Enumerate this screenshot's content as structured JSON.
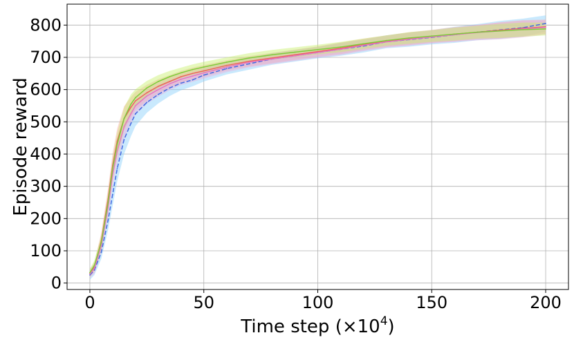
{
  "chart_data": {
    "type": "line",
    "title": "",
    "xlabel_prefix": "Time step (×10",
    "xlabel_exp": "4",
    "xlabel_suffix": ")",
    "ylabel": "Episode reward",
    "xlim": [
      -10,
      210
    ],
    "ylim": [
      -20,
      865
    ],
    "xticks": [
      0,
      50,
      100,
      150,
      200
    ],
    "yticks": [
      0,
      100,
      200,
      300,
      400,
      500,
      600,
      700,
      800
    ],
    "grid": true,
    "legend": "none",
    "series": [
      {
        "color": "#4169e1",
        "band_color": "#87cefa",
        "x": [
          0,
          2,
          5,
          8,
          10,
          12,
          15,
          18,
          20,
          25,
          30,
          35,
          40,
          45,
          50,
          60,
          70,
          80,
          90,
          100,
          110,
          120,
          130,
          140,
          150,
          160,
          170,
          180,
          190,
          200
        ],
        "y": [
          25,
          40,
          95,
          195,
          275,
          355,
          445,
          495,
          525,
          560,
          585,
          605,
          620,
          630,
          645,
          665,
          680,
          695,
          705,
          715,
          725,
          735,
          748,
          755,
          762,
          770,
          778,
          785,
          792,
          805
        ],
        "band": [
          15,
          15,
          20,
          30,
          35,
          40,
          45,
          40,
          38,
          32,
          28,
          25,
          22,
          20,
          20,
          18,
          18,
          18,
          18,
          18,
          20,
          20,
          20,
          22,
          22,
          25,
          25,
          28,
          28,
          25
        ]
      },
      {
        "color": "#f0605e",
        "band_color": "#f7a8a6",
        "x": [
          0,
          2,
          5,
          8,
          10,
          12,
          15,
          18,
          20,
          25,
          30,
          35,
          40,
          45,
          50,
          60,
          70,
          80,
          90,
          100,
          110,
          120,
          130,
          140,
          150,
          160,
          170,
          180,
          190,
          200
        ],
        "y": [
          30,
          50,
          130,
          260,
          365,
          440,
          510,
          545,
          565,
          590,
          610,
          625,
          640,
          650,
          658,
          675,
          688,
          698,
          708,
          718,
          728,
          740,
          750,
          758,
          765,
          772,
          778,
          784,
          790,
          795
        ],
        "band": [
          12,
          15,
          25,
          35,
          38,
          40,
          38,
          32,
          28,
          25,
          22,
          20,
          18,
          18,
          18,
          16,
          16,
          16,
          16,
          16,
          18,
          18,
          18,
          20,
          20,
          22,
          22,
          25,
          25,
          22
        ]
      },
      {
        "color": "#e377c2",
        "band_color": "#eab0dc",
        "x": [
          0,
          2,
          5,
          8,
          10,
          12,
          15,
          18,
          20,
          25,
          30,
          35,
          40,
          45,
          50,
          60,
          70,
          80,
          90,
          100,
          110,
          120,
          130,
          140,
          150,
          160,
          170,
          180,
          190,
          200
        ],
        "y": [
          28,
          45,
          115,
          235,
          335,
          410,
          485,
          525,
          550,
          580,
          600,
          618,
          632,
          642,
          652,
          670,
          685,
          695,
          705,
          715,
          725,
          737,
          748,
          756,
          763,
          770,
          777,
          782,
          788,
          793
        ],
        "band": [
          12,
          15,
          22,
          32,
          36,
          38,
          36,
          32,
          28,
          24,
          22,
          20,
          18,
          18,
          18,
          16,
          16,
          16,
          16,
          16,
          18,
          18,
          18,
          20,
          20,
          22,
          24,
          26,
          26,
          22
        ]
      },
      {
        "color": "#7dcc3a",
        "band_color": "#c8f06a",
        "x": [
          0,
          2,
          5,
          8,
          10,
          12,
          15,
          18,
          20,
          25,
          30,
          35,
          40,
          45,
          50,
          60,
          70,
          80,
          90,
          100,
          110,
          120,
          130,
          140,
          150,
          160,
          170,
          180,
          190,
          200
        ],
        "y": [
          32,
          55,
          125,
          250,
          355,
          430,
          510,
          555,
          575,
          605,
          625,
          640,
          652,
          662,
          670,
          685,
          698,
          708,
          716,
          724,
          732,
          742,
          752,
          760,
          766,
          772,
          778,
          782,
          786,
          788
        ],
        "band": [
          12,
          15,
          22,
          30,
          34,
          36,
          34,
          30,
          26,
          22,
          20,
          18,
          16,
          16,
          16,
          15,
          15,
          15,
          15,
          15,
          16,
          16,
          16,
          18,
          18,
          20,
          20,
          22,
          22,
          20
        ]
      }
    ]
  }
}
